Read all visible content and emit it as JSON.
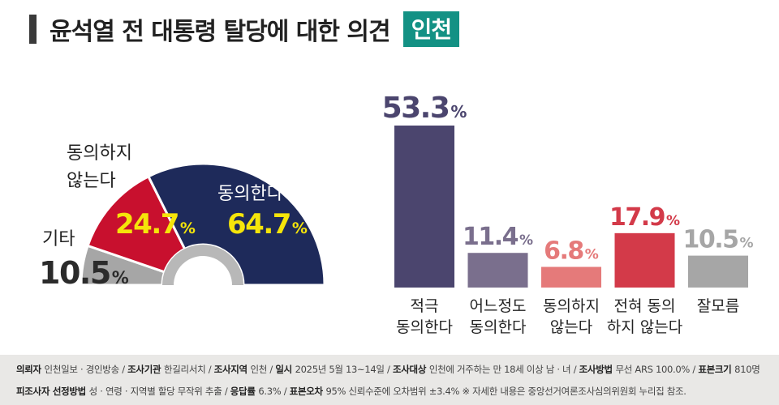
{
  "title": {
    "main": "윤석열 전 대통령 탈당에 대한 의견",
    "region": "인천"
  },
  "colors": {
    "agree": "#1e2a5a",
    "disagree": "#c8102e",
    "other": "#a6a6a6",
    "bar_strong_agree": "#4b456e",
    "bar_some_agree": "#7a6f8d",
    "bar_some_disagree": "#e57a7a",
    "bar_strong_disagree": "#d33a49",
    "bar_unknown": "#a6a6a6",
    "highlight_text": "#f5e50a"
  },
  "chart_data": [
    {
      "type": "pie",
      "variant": "half-donut",
      "slices": [
        {
          "label_lines": [
            "기타"
          ],
          "value": 10.5,
          "value_text": "10.5",
          "unit": "%",
          "color": "#a6a6a6"
        },
        {
          "label_lines": [
            "동의하지",
            "않는다"
          ],
          "value": 24.7,
          "value_text": "24.7",
          "unit": "%",
          "color": "#c8102e"
        },
        {
          "label_lines": [
            "동의한다"
          ],
          "value": 64.7,
          "value_text": "64.7",
          "unit": "%",
          "color": "#1e2a5a"
        }
      ]
    },
    {
      "type": "bar",
      "categories": [
        [
          "적극",
          "동의한다"
        ],
        [
          "어느정도",
          "동의한다"
        ],
        [
          "동의하지",
          "않는다"
        ],
        [
          "전혀 동의",
          "하지 않는다"
        ],
        [
          "잘모름"
        ]
      ],
      "values": [
        53.3,
        11.4,
        6.8,
        17.9,
        10.5
      ],
      "value_texts": [
        "53.3",
        "11.4",
        "6.8",
        "17.9",
        "10.5"
      ],
      "unit": "%",
      "colors": [
        "#4b456e",
        "#7a6f8d",
        "#e57a7a",
        "#d33a49",
        "#a6a6a6"
      ],
      "ylim": [
        0,
        53.3
      ]
    }
  ],
  "footer": {
    "line1": [
      {
        "label": "의뢰자",
        "value": "인천일보 · 경인방송"
      },
      {
        "label": "조사기관",
        "value": "한길리서치"
      },
      {
        "label": "조사지역",
        "value": "인천"
      },
      {
        "label": "일시",
        "value": "2025년 5월 13~14일"
      },
      {
        "label": "조사대상",
        "value": "인천에 거주하는 만 18세 이상 남 · 녀"
      },
      {
        "label": "조사방법",
        "value": "무선 ARS 100.0%"
      },
      {
        "label": "표본크기",
        "value": "810명"
      }
    ],
    "line2": [
      {
        "label": "피조사자 선정방법",
        "value": "성 · 연령 · 지역별 할당 무작위 추출"
      },
      {
        "label": "응답률",
        "value": "6.3%"
      },
      {
        "label": "표본오차",
        "value": "95% 신뢰수준에 오차범위 ±3.4%"
      }
    ],
    "note": "※ 자세한 내용은 중앙선거여론조사심의위원회 누리집 참조."
  }
}
